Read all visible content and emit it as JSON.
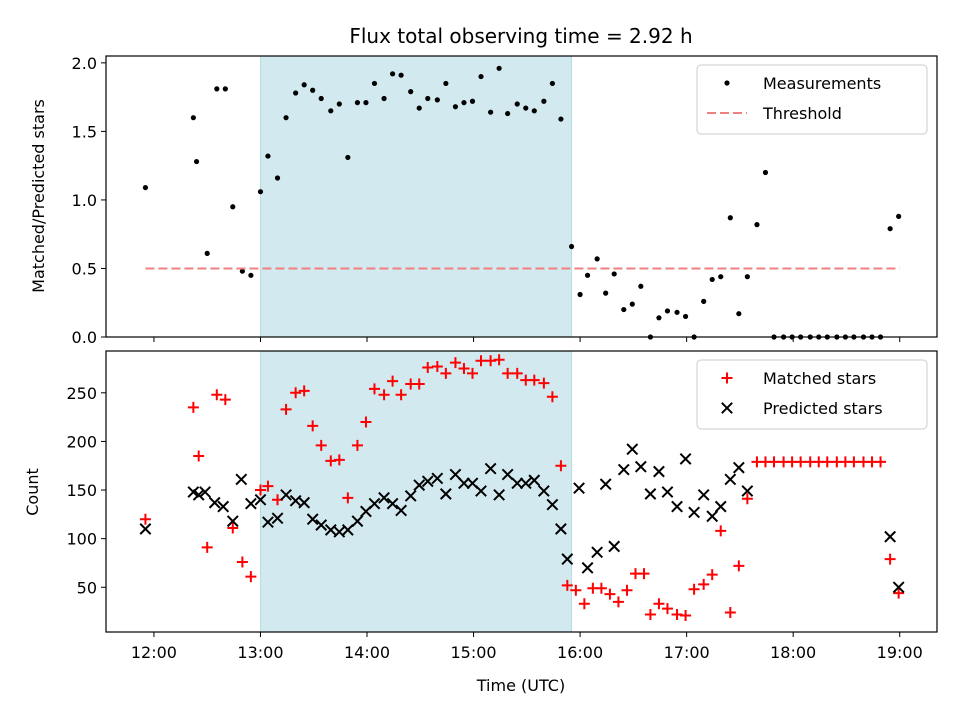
{
  "chart_data": {
    "title": "Flux total observing time = 2.92 h",
    "xlabel": "Time (UTC)",
    "x_unit": "hours UTC",
    "xlim": [
      11.55,
      19.35
    ],
    "x_ticks": [
      12,
      13,
      14,
      15,
      16,
      17,
      18,
      19
    ],
    "x_tick_labels": [
      "12:00",
      "13:00",
      "14:00",
      "15:00",
      "16:00",
      "17:00",
      "18:00",
      "19:00"
    ],
    "highlight_span": [
      13.0,
      15.92
    ],
    "highlight_color": "#d3e9f0",
    "panels": [
      {
        "type": "scatter",
        "ylabel": "Matched/Predicted stars",
        "ylim": [
          0,
          2.05
        ],
        "y_ticks": [
          0.0,
          0.5,
          1.0,
          1.5,
          2.0
        ],
        "y_tick_labels": [
          "0.0",
          "0.5",
          "1.0",
          "1.5",
          "2.0"
        ],
        "legend_position": "top-right",
        "series": [
          {
            "name": "Measurements",
            "marker": "dot",
            "color": "#000000",
            "points": [
              [
                11.92,
                1.09
              ],
              [
                12.37,
                1.6
              ],
              [
                12.4,
                1.28
              ],
              [
                12.5,
                0.61
              ],
              [
                12.59,
                1.81
              ],
              [
                12.67,
                1.81
              ],
              [
                12.74,
                0.95
              ],
              [
                12.83,
                0.48
              ],
              [
                12.91,
                0.45
              ],
              [
                13.0,
                1.06
              ],
              [
                13.07,
                1.32
              ],
              [
                13.16,
                1.16
              ],
              [
                13.24,
                1.6
              ],
              [
                13.33,
                1.78
              ],
              [
                13.41,
                1.84
              ],
              [
                13.49,
                1.8
              ],
              [
                13.57,
                1.74
              ],
              [
                13.66,
                1.65
              ],
              [
                13.74,
                1.7
              ],
              [
                13.82,
                1.31
              ],
              [
                13.91,
                1.71
              ],
              [
                13.99,
                1.71
              ],
              [
                14.07,
                1.85
              ],
              [
                14.16,
                1.74
              ],
              [
                14.24,
                1.92
              ],
              [
                14.32,
                1.91
              ],
              [
                14.41,
                1.79
              ],
              [
                14.49,
                1.67
              ],
              [
                14.57,
                1.74
              ],
              [
                14.66,
                1.73
              ],
              [
                14.74,
                1.85
              ],
              [
                14.83,
                1.68
              ],
              [
                14.91,
                1.71
              ],
              [
                14.99,
                1.72
              ],
              [
                15.07,
                1.9
              ],
              [
                15.16,
                1.64
              ],
              [
                15.24,
                1.96
              ],
              [
                15.32,
                1.63
              ],
              [
                15.41,
                1.7
              ],
              [
                15.49,
                1.67
              ],
              [
                15.57,
                1.65
              ],
              [
                15.66,
                1.72
              ],
              [
                15.74,
                1.85
              ],
              [
                15.82,
                1.59
              ],
              [
                15.92,
                0.66
              ],
              [
                16.0,
                0.31
              ],
              [
                16.07,
                0.45
              ],
              [
                16.16,
                0.57
              ],
              [
                16.24,
                0.32
              ],
              [
                16.32,
                0.46
              ],
              [
                16.41,
                0.2
              ],
              [
                16.49,
                0.24
              ],
              [
                16.57,
                0.37
              ],
              [
                16.66,
                0.0
              ],
              [
                16.74,
                0.14
              ],
              [
                16.82,
                0.19
              ],
              [
                16.91,
                0.18
              ],
              [
                16.99,
                0.15
              ],
              [
                17.07,
                0.0
              ],
              [
                17.16,
                0.26
              ],
              [
                17.24,
                0.42
              ],
              [
                17.32,
                0.44
              ],
              [
                17.41,
                0.87
              ],
              [
                17.49,
                0.17
              ],
              [
                17.57,
                0.44
              ],
              [
                17.66,
                0.82
              ],
              [
                17.74,
                1.2
              ],
              [
                17.82,
                0.0
              ],
              [
                17.91,
                0.0
              ],
              [
                17.99,
                0.0
              ],
              [
                18.07,
                0.0
              ],
              [
                18.16,
                0.0
              ],
              [
                18.24,
                0.0
              ],
              [
                18.32,
                0.0
              ],
              [
                18.41,
                0.0
              ],
              [
                18.49,
                0.0
              ],
              [
                18.57,
                0.0
              ],
              [
                18.66,
                0.0
              ],
              [
                18.74,
                0.0
              ],
              [
                18.82,
                0.0
              ],
              [
                18.91,
                0.79
              ],
              [
                18.99,
                0.88
              ]
            ]
          },
          {
            "name": "Threshold",
            "marker": "dashed-line",
            "color": "#f08080",
            "points": [
              [
                11.92,
                0.5
              ],
              [
                19.0,
                0.5
              ]
            ]
          }
        ]
      },
      {
        "type": "scatter",
        "ylabel": "Count",
        "ylim": [
          4,
          293
        ],
        "y_ticks": [
          50,
          100,
          150,
          200,
          250
        ],
        "y_tick_labels": [
          "50",
          "100",
          "150",
          "200",
          "250"
        ],
        "legend_position": "top-right",
        "series": [
          {
            "name": "Matched stars",
            "marker": "plus",
            "color": "#ff0000",
            "points": [
              [
                11.92,
                120
              ],
              [
                12.37,
                235
              ],
              [
                12.42,
                185
              ],
              [
                12.5,
                91
              ],
              [
                12.59,
                248
              ],
              [
                12.67,
                243
              ],
              [
                12.74,
                111
              ],
              [
                12.83,
                76
              ],
              [
                12.91,
                61
              ],
              [
                13.0,
                150
              ],
              [
                13.07,
                154
              ],
              [
                13.16,
                140
              ],
              [
                13.24,
                233
              ],
              [
                13.33,
                250
              ],
              [
                13.41,
                252
              ],
              [
                13.49,
                216
              ],
              [
                13.57,
                196
              ],
              [
                13.66,
                180
              ],
              [
                13.74,
                181
              ],
              [
                13.82,
                142
              ],
              [
                13.91,
                196
              ],
              [
                13.99,
                220
              ],
              [
                14.07,
                254
              ],
              [
                14.16,
                248
              ],
              [
                14.24,
                262
              ],
              [
                14.32,
                248
              ],
              [
                14.41,
                259
              ],
              [
                14.49,
                259
              ],
              [
                14.57,
                276
              ],
              [
                14.66,
                277
              ],
              [
                14.74,
                270
              ],
              [
                14.83,
                281
              ],
              [
                14.91,
                275
              ],
              [
                14.99,
                270
              ],
              [
                15.07,
                283
              ],
              [
                15.16,
                283
              ],
              [
                15.24,
                284
              ],
              [
                15.32,
                270
              ],
              [
                15.41,
                270
              ],
              [
                15.49,
                263
              ],
              [
                15.57,
                263
              ],
              [
                15.66,
                260
              ],
              [
                15.74,
                246
              ],
              [
                15.82,
                175
              ],
              [
                15.88,
                52
              ],
              [
                15.96,
                47
              ],
              [
                16.04,
                33
              ],
              [
                16.12,
                49
              ],
              [
                16.2,
                49
              ],
              [
                16.28,
                43
              ],
              [
                16.36,
                35
              ],
              [
                16.44,
                47
              ],
              [
                16.52,
                64
              ],
              [
                16.6,
                64
              ],
              [
                16.66,
                22
              ],
              [
                16.74,
                33
              ],
              [
                16.82,
                28
              ],
              [
                16.91,
                22
              ],
              [
                16.99,
                21
              ],
              [
                17.07,
                48
              ],
              [
                17.16,
                53
              ],
              [
                17.24,
                63
              ],
              [
                17.32,
                108
              ],
              [
                17.41,
                24
              ],
              [
                17.49,
                72
              ],
              [
                17.57,
                141
              ],
              [
                17.66,
                179
              ],
              [
                17.74,
                179
              ],
              [
                17.82,
                179
              ],
              [
                17.91,
                179
              ],
              [
                17.99,
                179
              ],
              [
                18.07,
                179
              ],
              [
                18.16,
                179
              ],
              [
                18.24,
                179
              ],
              [
                18.32,
                179
              ],
              [
                18.41,
                179
              ],
              [
                18.49,
                179
              ],
              [
                18.57,
                179
              ],
              [
                18.66,
                179
              ],
              [
                18.74,
                179
              ],
              [
                18.82,
                179
              ],
              [
                18.91,
                79
              ],
              [
                18.99,
                44
              ]
            ]
          },
          {
            "name": "Predicted stars",
            "marker": "x",
            "color": "#000000",
            "points": [
              [
                11.92,
                110
              ],
              [
                12.37,
                148
              ],
              [
                12.42,
                145
              ],
              [
                12.48,
                148
              ],
              [
                12.57,
                137
              ],
              [
                12.65,
                133
              ],
              [
                12.74,
                118
              ],
              [
                12.82,
                161
              ],
              [
                12.91,
                136
              ],
              [
                13.0,
                140
              ],
              [
                13.07,
                117
              ],
              [
                13.16,
                121
              ],
              [
                13.24,
                145
              ],
              [
                13.33,
                139
              ],
              [
                13.41,
                137
              ],
              [
                13.49,
                120
              ],
              [
                13.57,
                114
              ],
              [
                13.66,
                109
              ],
              [
                13.74,
                107
              ],
              [
                13.82,
                109
              ],
              [
                13.91,
                118
              ],
              [
                13.99,
                128
              ],
              [
                14.07,
                136
              ],
              [
                14.16,
                142
              ],
              [
                14.24,
                136
              ],
              [
                14.32,
                129
              ],
              [
                14.41,
                144
              ],
              [
                14.49,
                155
              ],
              [
                14.57,
                159
              ],
              [
                14.66,
                162
              ],
              [
                14.74,
                146
              ],
              [
                14.83,
                166
              ],
              [
                14.91,
                157
              ],
              [
                14.99,
                157
              ],
              [
                15.07,
                149
              ],
              [
                15.16,
                172
              ],
              [
                15.24,
                145
              ],
              [
                15.32,
                166
              ],
              [
                15.41,
                157
              ],
              [
                15.49,
                157
              ],
              [
                15.57,
                160
              ],
              [
                15.66,
                149
              ],
              [
                15.74,
                135
              ],
              [
                15.82,
                110
              ],
              [
                15.88,
                79
              ],
              [
                15.99,
                152
              ],
              [
                16.07,
                70
              ],
              [
                16.16,
                86
              ],
              [
                16.24,
                156
              ],
              [
                16.32,
                92
              ],
              [
                16.41,
                171
              ],
              [
                16.49,
                192
              ],
              [
                16.57,
                174
              ],
              [
                16.66,
                146
              ],
              [
                16.74,
                169
              ],
              [
                16.82,
                148
              ],
              [
                16.91,
                133
              ],
              [
                16.99,
                182
              ],
              [
                17.07,
                127
              ],
              [
                17.16,
                145
              ],
              [
                17.24,
                123
              ],
              [
                17.32,
                133
              ],
              [
                17.41,
                161
              ],
              [
                17.49,
                173
              ],
              [
                17.57,
                149
              ],
              [
                18.91,
                102
              ],
              [
                18.99,
                50
              ]
            ]
          }
        ]
      }
    ]
  }
}
